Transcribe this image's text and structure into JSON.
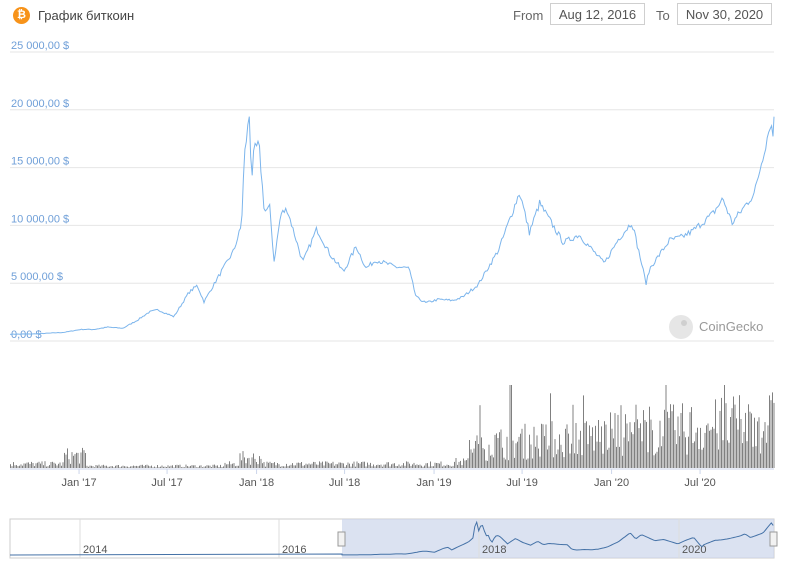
{
  "header": {
    "title": "График биткоин",
    "coin_icon": "bitcoin-icon",
    "from_label": "From",
    "from_value": "Aug 12, 2016",
    "to_label": "To",
    "to_value": "Nov 30, 2020"
  },
  "watermark": {
    "text": "CoinGecko",
    "icon": "gecko-logo-icon"
  },
  "colors": {
    "price_line": "#7cb5ec",
    "volume_bar": "#808080",
    "navigator_mask": "#ccd6eb",
    "navigator_line": "#4572a7",
    "accent": "#f7931a"
  },
  "chart_data": {
    "type": "line",
    "title": "График биткоин",
    "xlim": [
      "2016-08-12",
      "2020-11-30"
    ],
    "ylim": [
      0,
      25000
    ],
    "y_ticks": [
      0,
      5000,
      10000,
      15000,
      20000,
      25000
    ],
    "y_tick_labels": [
      "0,00 $",
      "5 000,00 $",
      "10 000,00 $",
      "15 000,00 $",
      "20 000,00 $",
      "25 000,00 $"
    ],
    "x_ticks": [
      "2017-01-01",
      "2017-07-01",
      "2018-01-01",
      "2018-07-01",
      "2019-01-01",
      "2019-07-01",
      "2020-01-01",
      "2020-07-01"
    ],
    "x_tick_labels": [
      "Jan '17",
      "Jul '17",
      "Jan '18",
      "Jul '18",
      "Jan '19",
      "Jul '19",
      "Jan '20",
      "Jul '20"
    ],
    "grid": true,
    "price": {
      "x": [
        "2016-08-12",
        "2016-10-01",
        "2016-12-01",
        "2017-01-05",
        "2017-02-01",
        "2017-03-01",
        "2017-04-01",
        "2017-05-01",
        "2017-05-25",
        "2017-06-12",
        "2017-07-15",
        "2017-08-15",
        "2017-09-01",
        "2017-09-15",
        "2017-10-15",
        "2017-11-15",
        "2017-12-01",
        "2017-12-07",
        "2017-12-17",
        "2017-12-22",
        "2017-12-27",
        "2018-01-06",
        "2018-01-17",
        "2018-01-28",
        "2018-02-06",
        "2018-02-20",
        "2018-03-05",
        "2018-04-06",
        "2018-05-05",
        "2018-06-01",
        "2018-06-29",
        "2018-07-25",
        "2018-08-14",
        "2018-09-04",
        "2018-10-15",
        "2018-11-10",
        "2018-11-25",
        "2018-12-15",
        "2019-01-10",
        "2019-02-08",
        "2019-03-01",
        "2019-04-02",
        "2019-05-14",
        "2019-06-26",
        "2019-07-16",
        "2019-08-06",
        "2019-09-24",
        "2019-10-26",
        "2019-12-17",
        "2020-01-15",
        "2020-02-12",
        "2020-03-12",
        "2020-03-20",
        "2020-04-29",
        "2020-05-25",
        "2020-06-15",
        "2020-07-27",
        "2020-08-17",
        "2020-09-05",
        "2020-10-21",
        "2020-11-17",
        "2020-11-24",
        "2020-11-27",
        "2020-11-30"
      ],
      "y": [
        590,
        610,
        750,
        1000,
        1000,
        1200,
        1100,
        1800,
        2500,
        2700,
        2100,
        4200,
        4800,
        3400,
        5600,
        7800,
        10000,
        16000,
        19500,
        14000,
        16500,
        17000,
        11200,
        11500,
        6900,
        11000,
        11400,
        6800,
        9700,
        7500,
        6000,
        8200,
        6300,
        7000,
        6400,
        6300,
        3800,
        3300,
        3600,
        3500,
        3800,
        4900,
        7900,
        12900,
        9400,
        11900,
        8500,
        9200,
        6700,
        8800,
        10300,
        5000,
        6300,
        8700,
        9000,
        9500,
        11000,
        12300,
        10200,
        12800,
        17800,
        19200,
        17000,
        19400
      ]
    },
    "volume": {
      "label_visible": false,
      "note": "trading volume histogram, unlabeled"
    }
  },
  "navigator": {
    "tick_labels": [
      "2014",
      "2016",
      "2018",
      "2020"
    ]
  }
}
